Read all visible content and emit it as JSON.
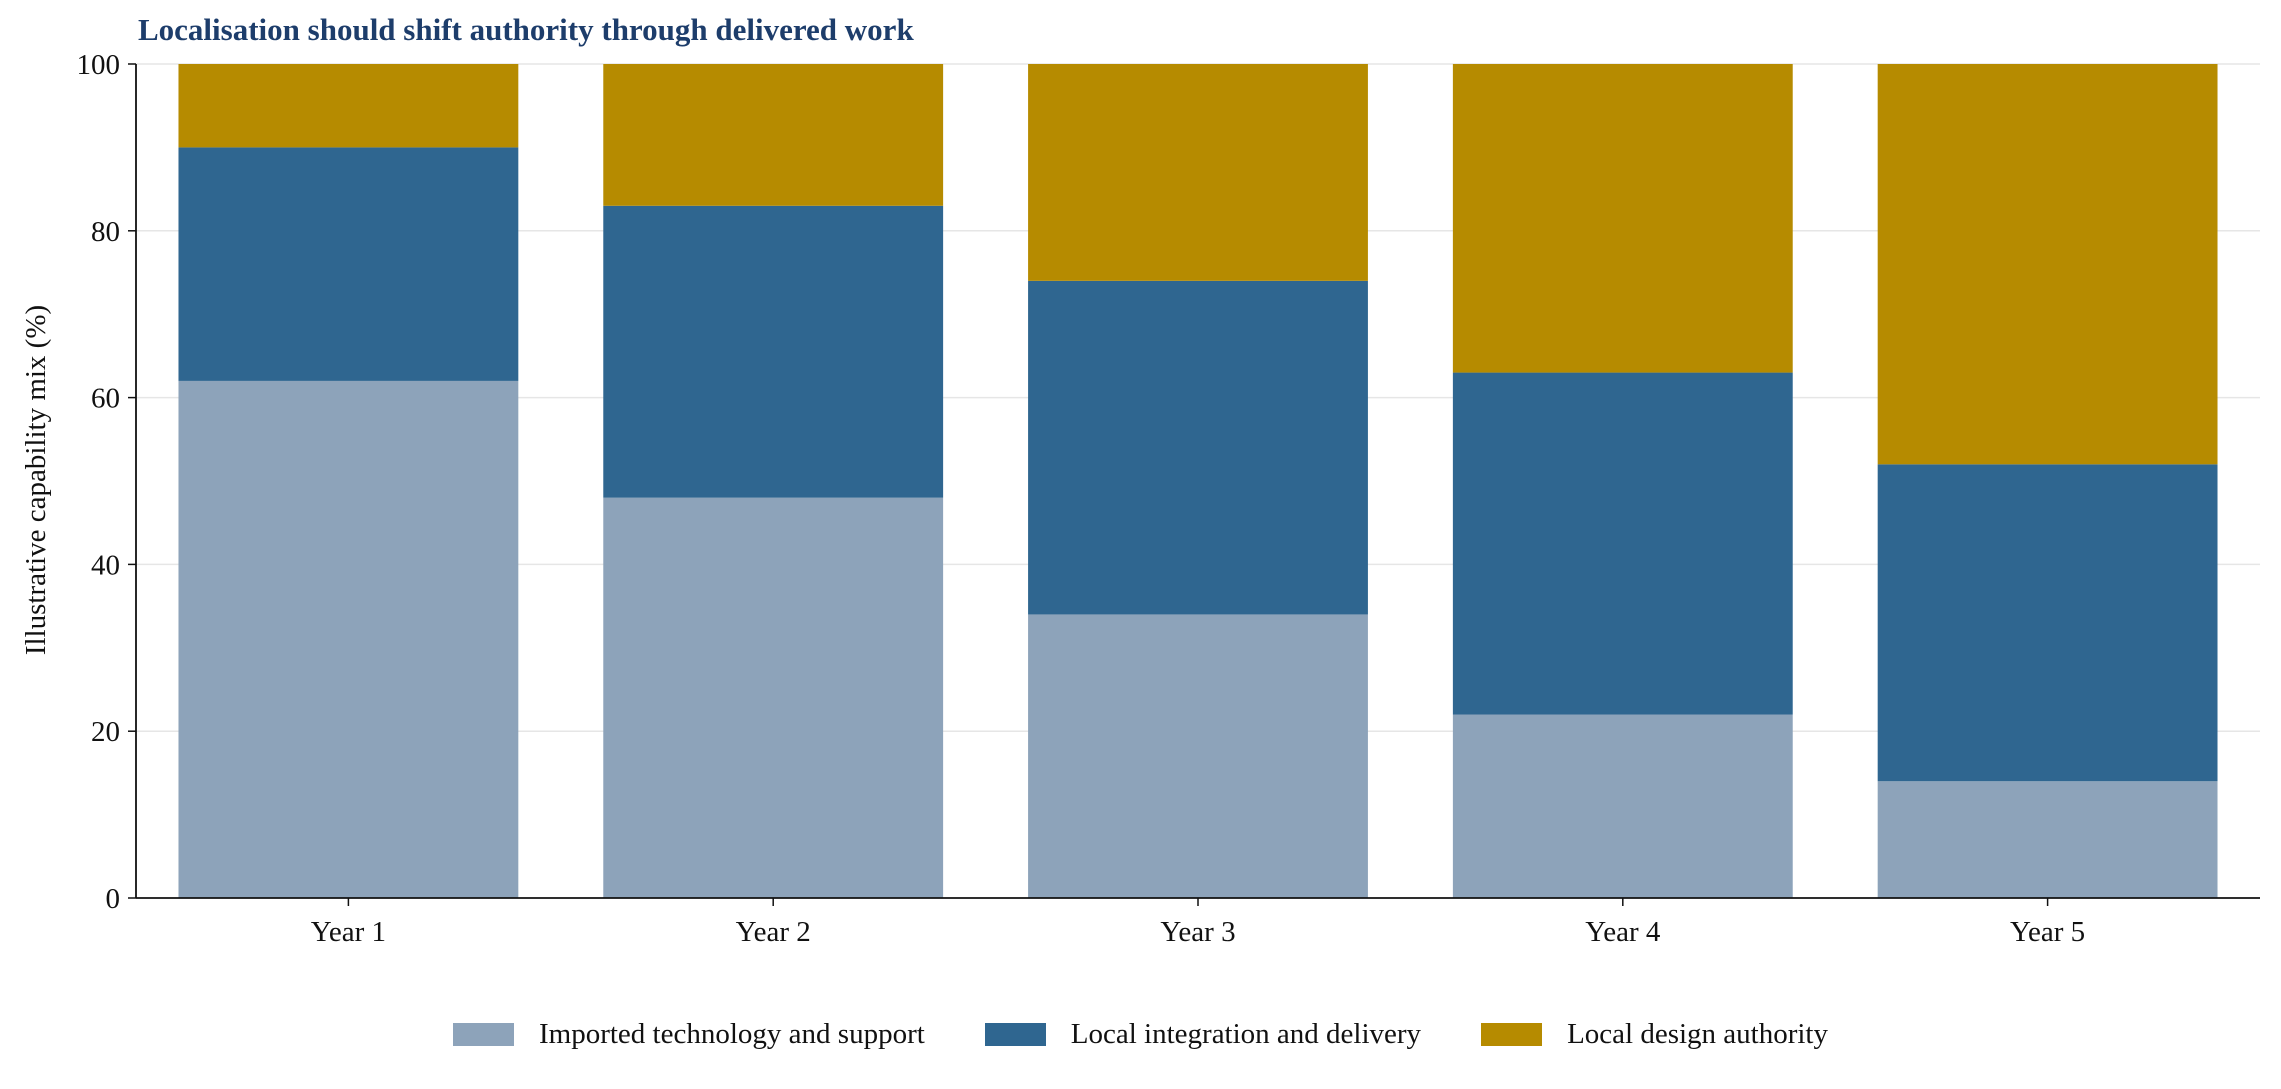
{
  "chart_data": {
    "type": "bar",
    "stacked": true,
    "title": "Localisation should shift authority through delivered work",
    "xlabel": "",
    "ylabel": "Illustrative capability mix (%)",
    "ylim": [
      0,
      100
    ],
    "yticks": [
      0,
      20,
      40,
      60,
      80,
      100
    ],
    "grid": "horizontal",
    "legend_placement": "bottom-center",
    "categories": [
      "Year 1",
      "Year 2",
      "Year 3",
      "Year 4",
      "Year 5"
    ],
    "series": [
      {
        "name": "Imported technology and support",
        "color": "#8da3ba",
        "values": [
          62,
          48,
          34,
          22,
          14
        ]
      },
      {
        "name": "Local integration and delivery",
        "color": "#2f6690",
        "values": [
          28,
          35,
          40,
          41,
          38
        ]
      },
      {
        "name": "Local design authority",
        "color": "#b68b00",
        "values": [
          10,
          17,
          26,
          37,
          48
        ]
      }
    ]
  }
}
